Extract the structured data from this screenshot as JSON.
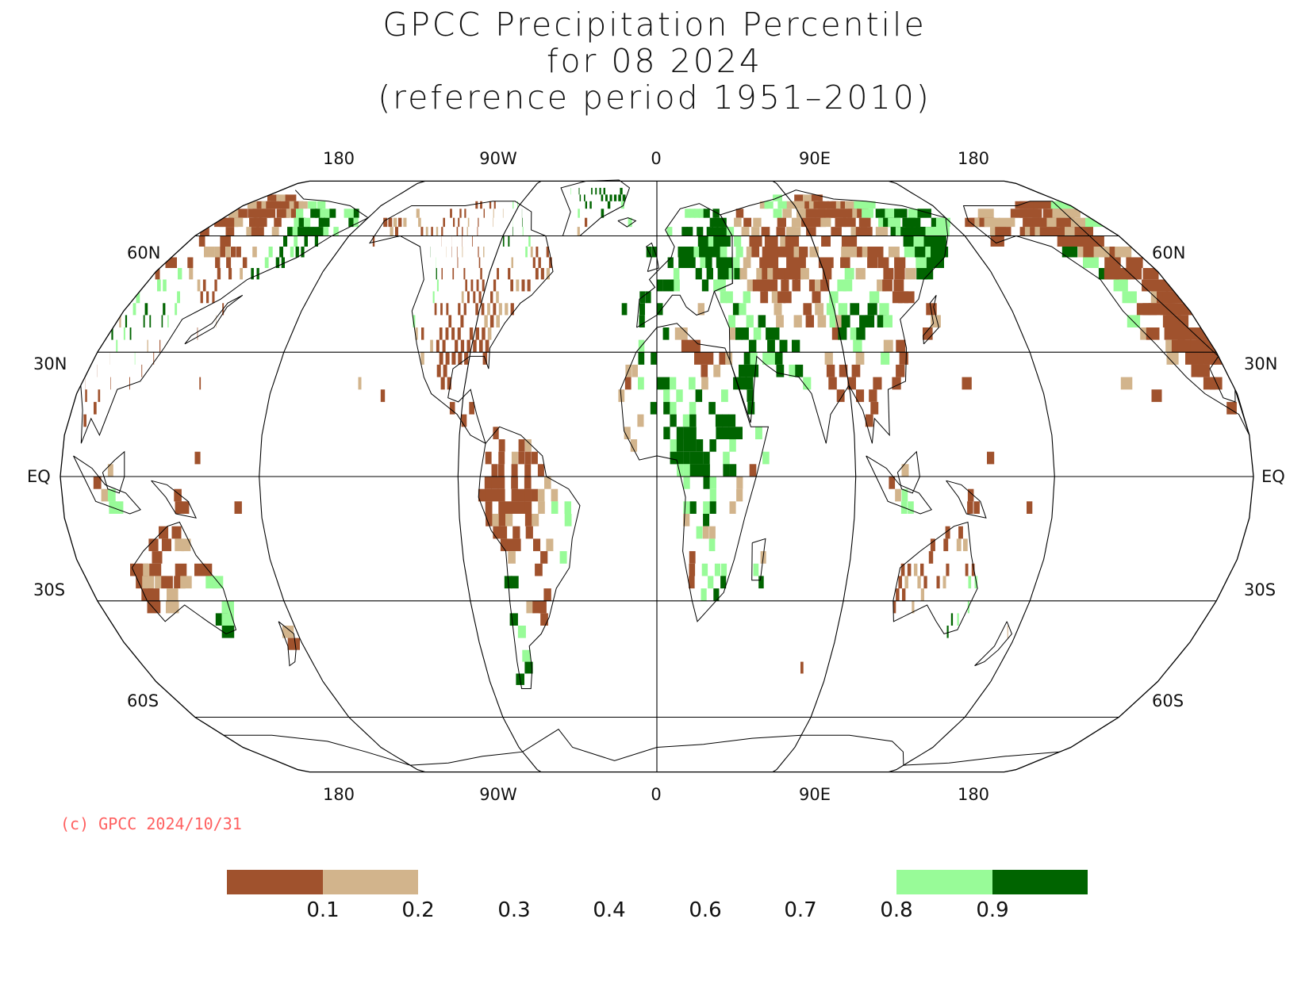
{
  "title": {
    "line1": "GPCC Precipitation Percentile",
    "line2": "for 08 2024",
    "line3": "(reference period 1951–2010)"
  },
  "lon_labels_top": [
    "180",
    "90W",
    "0",
    "90E",
    "180"
  ],
  "lon_labels_bottom": [
    "180",
    "90W",
    "0",
    "90E",
    "180"
  ],
  "lat_labels": [
    "60N",
    "30N",
    "EQ",
    "30S",
    "60S"
  ],
  "credit": "(c) GPCC 2024/10/31",
  "legend": {
    "ticks": [
      "0.1",
      "0.2",
      "0.3",
      "0.4",
      "0.6",
      "0.7",
      "0.8",
      "0.9"
    ],
    "colors": {
      "very_dry": "#a0522d",
      "dry": "#d2b48c",
      "wet": "#98fb98",
      "very_wet": "#006400"
    }
  },
  "map_colors": {
    "very_dry": "#a0522d",
    "dry": "#d2b48c",
    "wet": "#98fb98",
    "very_wet": "#006400"
  }
}
